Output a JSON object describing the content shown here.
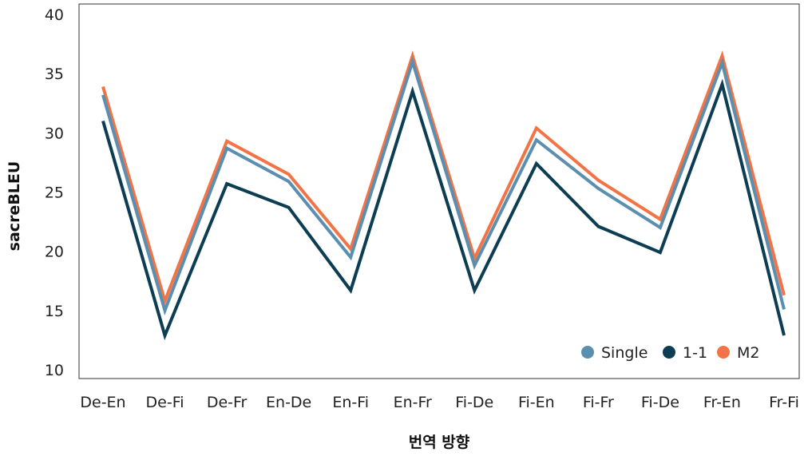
{
  "chart_data": {
    "type": "line",
    "title": "",
    "xlabel": "번역 방향",
    "ylabel": "sacreBLEU",
    "ylim": [
      10,
      40
    ],
    "yticks": [
      "10",
      "15",
      "20",
      "25",
      "30",
      "35",
      "40"
    ],
    "grid": false,
    "legend_position": "bottom-right",
    "categories": [
      "De-En",
      "De-Fi",
      "De-Fr",
      "En-De",
      "En-Fi",
      "En-Fr",
      "Fi-De",
      "Fi-En",
      "Fi-Fr",
      "Fi-De",
      "Fr-En",
      "Fr-Fi"
    ],
    "series": [
      {
        "name": "Single",
        "color": "#5b8fb0",
        "values": [
          33.2,
          15.0,
          28.7,
          25.9,
          19.5,
          36.0,
          18.8,
          29.4,
          25.3,
          22.0,
          35.9,
          15.1
        ]
      },
      {
        "name": "1-1",
        "color": "#0c3d52",
        "values": [
          31.0,
          12.9,
          25.7,
          23.7,
          16.7,
          33.5,
          16.7,
          27.4,
          22.1,
          19.9,
          34.1,
          12.9
        ]
      },
      {
        "name": "M2",
        "color": "#f27446",
        "values": [
          33.9,
          15.8,
          29.3,
          26.5,
          20.2,
          36.5,
          19.4,
          30.4,
          26.0,
          22.7,
          36.5,
          16.3
        ]
      }
    ]
  }
}
